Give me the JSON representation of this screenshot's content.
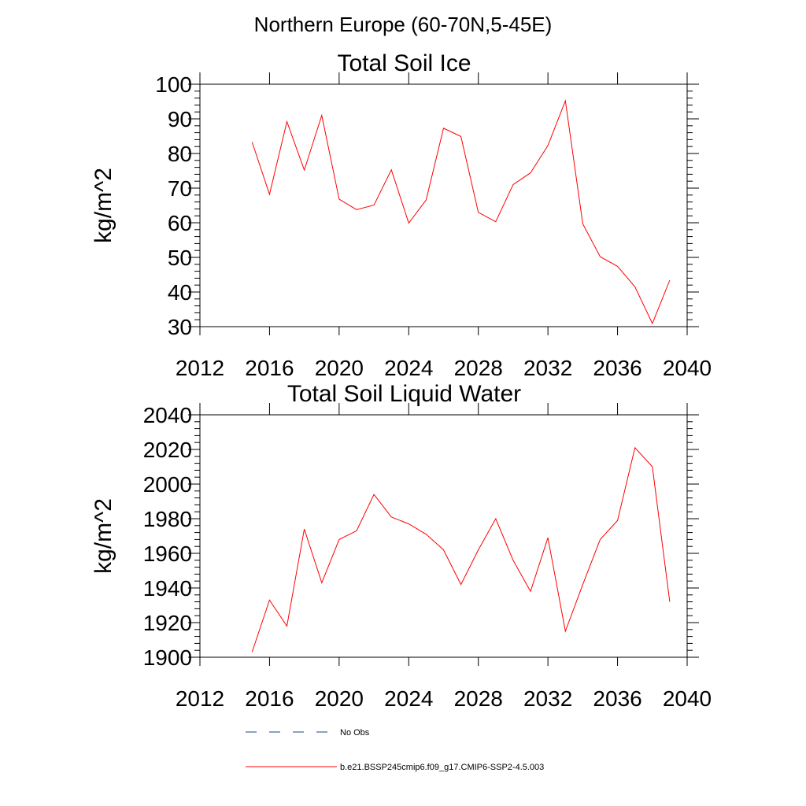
{
  "figure": {
    "suptitle": "Northern Europe (60-70N,5-45E)",
    "series_color": "#ff0000",
    "obs_color": "#1f3f8f"
  },
  "legend": {
    "obs_label": "No Obs",
    "model_label": "b.e21.BSSP245cmip6.f09_g17.CMIP6-SSP2-4.5.003"
  },
  "chart_data": [
    {
      "type": "line",
      "title": "Total Soil Ice",
      "xlabel": "",
      "ylabel": "kg/m^2",
      "xlim": [
        2012,
        2040
      ],
      "ylim": [
        30,
        100
      ],
      "xticks": [
        2012,
        2016,
        2020,
        2024,
        2028,
        2032,
        2036,
        2040
      ],
      "yticks": [
        30,
        40,
        50,
        60,
        70,
        80,
        90,
        100
      ],
      "x": [
        2015,
        2016,
        2017,
        2018,
        2019,
        2020,
        2021,
        2022,
        2023,
        2024,
        2025,
        2026,
        2027,
        2028,
        2029,
        2030,
        2031,
        2032,
        2033,
        2034,
        2035,
        2036,
        2037,
        2038,
        2039
      ],
      "series": [
        {
          "values": [
            83.3,
            68.2,
            89.2,
            75.2,
            91.0,
            66.8,
            63.8,
            65.1,
            75.3,
            59.9,
            66.6,
            87.3,
            84.9,
            63.0,
            60.3,
            71.0,
            74.4,
            82.3,
            95.2,
            59.7,
            50.2,
            47.4,
            41.5,
            30.9,
            43.4
          ]
        }
      ]
    },
    {
      "type": "line",
      "title": "Total Soil Liquid Water",
      "xlabel": "",
      "ylabel": "kg/m^2",
      "xlim": [
        2012,
        2040
      ],
      "ylim": [
        1900,
        2040
      ],
      "xticks": [
        2012,
        2016,
        2020,
        2024,
        2028,
        2032,
        2036,
        2040
      ],
      "yticks": [
        1900,
        1920,
        1940,
        1960,
        1980,
        2000,
        2020,
        2040
      ],
      "x": [
        2015,
        2016,
        2017,
        2018,
        2019,
        2020,
        2021,
        2022,
        2023,
        2024,
        2025,
        2026,
        2027,
        2028,
        2029,
        2030,
        2031,
        2032,
        2033,
        2034,
        2035,
        2036,
        2037,
        2038,
        2039
      ],
      "series": [
        {
          "values": [
            1903,
            1933,
            1918,
            1974,
            1943,
            1968,
            1973,
            1994,
            1981,
            1977,
            1971,
            1962,
            1942,
            1962,
            1980,
            1956,
            1938,
            1969,
            1915,
            1942,
            1968,
            1979,
            2021,
            2010,
            1932
          ]
        }
      ]
    }
  ]
}
